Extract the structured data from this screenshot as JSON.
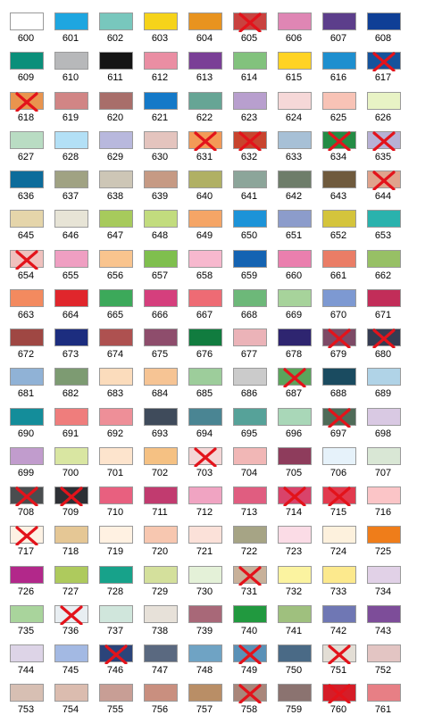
{
  "swatches": [
    {
      "code": "600",
      "color": "#ffffff",
      "crossed": false
    },
    {
      "code": "601",
      "color": "#1ea6e0",
      "crossed": false
    },
    {
      "code": "602",
      "color": "#78c7bd",
      "crossed": false
    },
    {
      "code": "603",
      "color": "#f6d31a",
      "crossed": false
    },
    {
      "code": "604",
      "color": "#e8931f",
      "crossed": false
    },
    {
      "code": "605",
      "color": "#c9423f",
      "crossed": true
    },
    {
      "code": "606",
      "color": "#df86b4",
      "crossed": false
    },
    {
      "code": "607",
      "color": "#5c3e8b",
      "crossed": false
    },
    {
      "code": "608",
      "color": "#0f3f96",
      "crossed": false
    },
    {
      "code": "609",
      "color": "#0b8f7a",
      "crossed": false
    },
    {
      "code": "610",
      "color": "#b7b8ba",
      "crossed": false
    },
    {
      "code": "611",
      "color": "#151515",
      "crossed": false
    },
    {
      "code": "612",
      "color": "#ea8ea3",
      "crossed": false
    },
    {
      "code": "613",
      "color": "#7a3f96",
      "crossed": false
    },
    {
      "code": "614",
      "color": "#82c27d",
      "crossed": false
    },
    {
      "code": "615",
      "color": "#ffd324",
      "crossed": false
    },
    {
      "code": "616",
      "color": "#1e8fcf",
      "crossed": false
    },
    {
      "code": "617",
      "color": "#15539c",
      "crossed": true
    },
    {
      "code": "618",
      "color": "#e9944e",
      "crossed": true
    },
    {
      "code": "619",
      "color": "#d18585",
      "crossed": false
    },
    {
      "code": "620",
      "color": "#a86e6a",
      "crossed": false
    },
    {
      "code": "621",
      "color": "#1479c8",
      "crossed": false
    },
    {
      "code": "622",
      "color": "#66a595",
      "crossed": false
    },
    {
      "code": "623",
      "color": "#b89fce",
      "crossed": false
    },
    {
      "code": "624",
      "color": "#f6d8d8",
      "crossed": false
    },
    {
      "code": "625",
      "color": "#f8c3b6",
      "crossed": false
    },
    {
      "code": "626",
      "color": "#e8f3c5",
      "crossed": false
    },
    {
      "code": "627",
      "color": "#b9dcc3",
      "crossed": false
    },
    {
      "code": "628",
      "color": "#b3e0f6",
      "crossed": false
    },
    {
      "code": "629",
      "color": "#b8b8dd",
      "crossed": false
    },
    {
      "code": "630",
      "color": "#e4c4be",
      "crossed": false
    },
    {
      "code": "631",
      "color": "#f39a57",
      "crossed": true
    },
    {
      "code": "632",
      "color": "#c8442e",
      "crossed": true
    },
    {
      "code": "633",
      "color": "#a7c0d6",
      "crossed": false
    },
    {
      "code": "634",
      "color": "#248c45",
      "crossed": true
    },
    {
      "code": "635",
      "color": "#b7b1d5",
      "crossed": true
    },
    {
      "code": "636",
      "color": "#0d6c9b",
      "crossed": false
    },
    {
      "code": "637",
      "color": "#a0a283",
      "crossed": false
    },
    {
      "code": "638",
      "color": "#cdc6b6",
      "crossed": false
    },
    {
      "code": "639",
      "color": "#c69a84",
      "crossed": false
    },
    {
      "code": "640",
      "color": "#b0b064",
      "crossed": false
    },
    {
      "code": "641",
      "color": "#8ca59a",
      "crossed": false
    },
    {
      "code": "642",
      "color": "#6e7d6a",
      "crossed": false
    },
    {
      "code": "643",
      "color": "#6f5a3d",
      "crossed": false
    },
    {
      "code": "644",
      "color": "#e0a38c",
      "crossed": true
    },
    {
      "code": "645",
      "color": "#e5d5aa",
      "crossed": false
    },
    {
      "code": "646",
      "color": "#e7e4d6",
      "crossed": false
    },
    {
      "code": "647",
      "color": "#a7ca5c",
      "crossed": false
    },
    {
      "code": "648",
      "color": "#c2dc7e",
      "crossed": false
    },
    {
      "code": "649",
      "color": "#f5a566",
      "crossed": false
    },
    {
      "code": "650",
      "color": "#1c93d8",
      "crossed": false
    },
    {
      "code": "651",
      "color": "#8c9ccb",
      "crossed": false
    },
    {
      "code": "652",
      "color": "#d4c43c",
      "crossed": false
    },
    {
      "code": "653",
      "color": "#2ab2ad",
      "crossed": false
    },
    {
      "code": "654",
      "color": "#f0c1be",
      "crossed": true
    },
    {
      "code": "655",
      "color": "#ef9fc2",
      "crossed": false
    },
    {
      "code": "656",
      "color": "#f9c48e",
      "crossed": false
    },
    {
      "code": "657",
      "color": "#7fbf4e",
      "crossed": false
    },
    {
      "code": "658",
      "color": "#f7b8ce",
      "crossed": false
    },
    {
      "code": "659",
      "color": "#1463b2",
      "crossed": false
    },
    {
      "code": "660",
      "color": "#ea7fae",
      "crossed": false
    },
    {
      "code": "661",
      "color": "#ea7d66",
      "crossed": false
    },
    {
      "code": "662",
      "color": "#97c065",
      "crossed": false
    },
    {
      "code": "663",
      "color": "#f38a5f",
      "crossed": false
    },
    {
      "code": "664",
      "color": "#e0262c",
      "crossed": false
    },
    {
      "code": "665",
      "color": "#3ca95a",
      "crossed": false
    },
    {
      "code": "666",
      "color": "#d53f7d",
      "crossed": false
    },
    {
      "code": "667",
      "color": "#ee6b74",
      "crossed": false
    },
    {
      "code": "668",
      "color": "#6db879",
      "crossed": false
    },
    {
      "code": "669",
      "color": "#a7d39b",
      "crossed": false
    },
    {
      "code": "670",
      "color": "#7d99d2",
      "crossed": false
    },
    {
      "code": "671",
      "color": "#c22d59",
      "crossed": false
    },
    {
      "code": "672",
      "color": "#9f4743",
      "crossed": false
    },
    {
      "code": "673",
      "color": "#1c2d7f",
      "crossed": false
    },
    {
      "code": "674",
      "color": "#ae5150",
      "crossed": false
    },
    {
      "code": "675",
      "color": "#8e4d6c",
      "crossed": false
    },
    {
      "code": "676",
      "color": "#117c3f",
      "crossed": false
    },
    {
      "code": "677",
      "color": "#ebb3b8",
      "crossed": false
    },
    {
      "code": "678",
      "color": "#2e2570",
      "crossed": false
    },
    {
      "code": "679",
      "color": "#7d4a66",
      "crossed": true
    },
    {
      "code": "680",
      "color": "#353c52",
      "crossed": true
    },
    {
      "code": "681",
      "color": "#90b2d6",
      "crossed": false
    },
    {
      "code": "682",
      "color": "#7d9b72",
      "crossed": false
    },
    {
      "code": "683",
      "color": "#fbdcbc",
      "crossed": false
    },
    {
      "code": "684",
      "color": "#f6c494",
      "crossed": false
    },
    {
      "code": "685",
      "color": "#9dcd9b",
      "crossed": false
    },
    {
      "code": "686",
      "color": "#cbcbcb",
      "crossed": false
    },
    {
      "code": "687",
      "color": "#5ba45c",
      "crossed": true
    },
    {
      "code": "688",
      "color": "#1a4b60",
      "crossed": false
    },
    {
      "code": "689",
      "color": "#b0d3e7",
      "crossed": false
    },
    {
      "code": "690",
      "color": "#148d9a",
      "crossed": false
    },
    {
      "code": "691",
      "color": "#ef7d7c",
      "crossed": false
    },
    {
      "code": "692",
      "color": "#ee8f98",
      "crossed": false
    },
    {
      "code": "693",
      "color": "#3f4b5b",
      "crossed": false
    },
    {
      "code": "694",
      "color": "#4a8593",
      "crossed": false
    },
    {
      "code": "695",
      "color": "#56a299",
      "crossed": false
    },
    {
      "code": "696",
      "color": "#a9d7b8",
      "crossed": false
    },
    {
      "code": "697",
      "color": "#4f6b58",
      "crossed": true
    },
    {
      "code": "698",
      "color": "#d9c9e3",
      "crossed": false
    },
    {
      "code": "699",
      "color": "#c19ccd",
      "crossed": false
    },
    {
      "code": "700",
      "color": "#d9e6a2",
      "crossed": false
    },
    {
      "code": "701",
      "color": "#fde4cd",
      "crossed": false
    },
    {
      "code": "702",
      "color": "#f5c183",
      "crossed": false
    },
    {
      "code": "703",
      "color": "#f4d6d6",
      "crossed": true
    },
    {
      "code": "704",
      "color": "#f1b7b6",
      "crossed": false
    },
    {
      "code": "705",
      "color": "#8e3c5c",
      "crossed": false
    },
    {
      "code": "706",
      "color": "#e6f2fa",
      "crossed": false
    },
    {
      "code": "707",
      "color": "#d9e7d5",
      "crossed": false
    },
    {
      "code": "708",
      "color": "#4a4d4f",
      "crossed": true
    },
    {
      "code": "709",
      "color": "#2d3035",
      "crossed": true
    },
    {
      "code": "710",
      "color": "#e8607f",
      "crossed": false
    },
    {
      "code": "711",
      "color": "#c13b6f",
      "crossed": false
    },
    {
      "code": "712",
      "color": "#f0a4c2",
      "crossed": false
    },
    {
      "code": "713",
      "color": "#e05d80",
      "crossed": false
    },
    {
      "code": "714",
      "color": "#d9436a",
      "crossed": true
    },
    {
      "code": "715",
      "color": "#e23a4e",
      "crossed": true
    },
    {
      "code": "716",
      "color": "#fbc5c7",
      "crossed": false
    },
    {
      "code": "717",
      "color": "#fdf2e4",
      "crossed": true
    },
    {
      "code": "718",
      "color": "#e5c795",
      "crossed": false
    },
    {
      "code": "719",
      "color": "#fff1e2",
      "crossed": false
    },
    {
      "code": "720",
      "color": "#f7c7b0",
      "crossed": false
    },
    {
      "code": "721",
      "color": "#fbe1d9",
      "crossed": false
    },
    {
      "code": "722",
      "color": "#a6a485",
      "crossed": false
    },
    {
      "code": "723",
      "color": "#fbdce6",
      "crossed": false
    },
    {
      "code": "724",
      "color": "#fdf1dd",
      "crossed": false
    },
    {
      "code": "725",
      "color": "#ef7d1a",
      "crossed": false
    },
    {
      "code": "726",
      "color": "#b2288a",
      "crossed": false
    },
    {
      "code": "727",
      "color": "#aeca5d",
      "crossed": false
    },
    {
      "code": "728",
      "color": "#17a28a",
      "crossed": false
    },
    {
      "code": "729",
      "color": "#d4e09c",
      "crossed": false
    },
    {
      "code": "730",
      "color": "#e4f1d8",
      "crossed": false
    },
    {
      "code": "731",
      "color": "#c8b19a",
      "crossed": true
    },
    {
      "code": "732",
      "color": "#fbf3a0",
      "crossed": false
    },
    {
      "code": "733",
      "color": "#fce98d",
      "crossed": false
    },
    {
      "code": "734",
      "color": "#e1d1e7",
      "crossed": false
    },
    {
      "code": "735",
      "color": "#a9d49c",
      "crossed": false
    },
    {
      "code": "736",
      "color": "#e8eef2",
      "crossed": true
    },
    {
      "code": "737",
      "color": "#d0e6dc",
      "crossed": false
    },
    {
      "code": "738",
      "color": "#e7e1d9",
      "crossed": false
    },
    {
      "code": "739",
      "color": "#a86878",
      "crossed": false
    },
    {
      "code": "740",
      "color": "#21993f",
      "crossed": false
    },
    {
      "code": "741",
      "color": "#9fc07e",
      "crossed": false
    },
    {
      "code": "742",
      "color": "#6f77b4",
      "crossed": false
    },
    {
      "code": "743",
      "color": "#7d4d99",
      "crossed": false
    },
    {
      "code": "744",
      "color": "#ddd4e7",
      "crossed": false
    },
    {
      "code": "745",
      "color": "#a3b9e3",
      "crossed": false
    },
    {
      "code": "746",
      "color": "#2b447a",
      "crossed": true
    },
    {
      "code": "747",
      "color": "#5a6980",
      "crossed": false
    },
    {
      "code": "748",
      "color": "#6fa3c4",
      "crossed": false
    },
    {
      "code": "749",
      "color": "#5a91b7",
      "crossed": true
    },
    {
      "code": "750",
      "color": "#4a6a86",
      "crossed": false
    },
    {
      "code": "751",
      "color": "#e3ded5",
      "crossed": true
    },
    {
      "code": "752",
      "color": "#e3c5c3",
      "crossed": false
    },
    {
      "code": "753",
      "color": "#d7bfb3",
      "crossed": false
    },
    {
      "code": "754",
      "color": "#dbbcaf",
      "crossed": false
    },
    {
      "code": "755",
      "color": "#c89e95",
      "crossed": false
    },
    {
      "code": "756",
      "color": "#c98f7f",
      "crossed": false
    },
    {
      "code": "757",
      "color": "#b98e66",
      "crossed": false
    },
    {
      "code": "758",
      "color": "#a9867a",
      "crossed": true
    },
    {
      "code": "759",
      "color": "#8b7370",
      "crossed": false
    },
    {
      "code": "760",
      "color": "#d51d28",
      "crossed": true
    },
    {
      "code": "761",
      "color": "#e77f85",
      "crossed": false
    }
  ]
}
